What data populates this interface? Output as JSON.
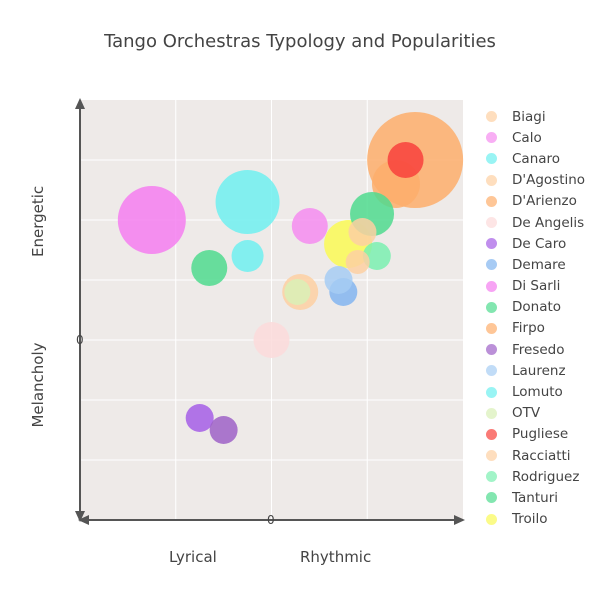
{
  "chart_data": {
    "type": "scatter",
    "title": "Tango Orchestras Typology and Popularities",
    "xlabel_left": "Lyrical",
    "xlabel_right": "Rhythmic",
    "ylabel_top": "Energetic",
    "ylabel_bottom": "Melancholy",
    "x_origin_label": "0",
    "y_origin_label": "0",
    "xlim": [
      -2,
      2
    ],
    "ylim": [
      -3,
      4
    ],
    "legend_position": "right",
    "series": [
      {
        "name": "Biagi",
        "color": "#fdd0a2",
        "x": 0.95,
        "y": 1.8,
        "size": 14
      },
      {
        "name": "Calo",
        "color": "#f58cf0",
        "x": 0.4,
        "y": 1.9,
        "size": 18
      },
      {
        "name": "Canaro",
        "color": "#6ef0f0",
        "x": -0.25,
        "y": 2.3,
        "size": 32
      },
      {
        "name": "D'Agostino",
        "color": "#fdd0a2",
        "x": 0.3,
        "y": 0.8,
        "size": 18
      },
      {
        "name": "D'Arienzo",
        "color": "#fdae6b",
        "x": 1.3,
        "y": 2.6,
        "size": 24
      },
      {
        "name": "De Angelis",
        "color": "#fcdada",
        "x": 0.0,
        "y": 0.0,
        "size": 18
      },
      {
        "name": "De Caro",
        "color": "#a55ee6",
        "x": -0.75,
        "y": -1.3,
        "size": 14
      },
      {
        "name": "Demare",
        "color": "#82b5f0",
        "x": 0.75,
        "y": 0.8,
        "size": 14
      },
      {
        "name": "Di Sarli",
        "color": "#f47ef0",
        "x": -1.25,
        "y": 2.0,
        "size": 34
      },
      {
        "name": "Donato",
        "color": "#4fdb8e",
        "x": -0.65,
        "y": 1.2,
        "size": 18
      },
      {
        "name": "Firpo",
        "color": "#fdae6b",
        "x": 1.5,
        "y": 3.0,
        "size": 48
      },
      {
        "name": "Fresedo",
        "color": "#9e61c7",
        "x": -0.5,
        "y": -1.5,
        "size": 14
      },
      {
        "name": "Laurenz",
        "color": "#a6cdf3",
        "x": 0.7,
        "y": 1.0,
        "size": 14
      },
      {
        "name": "Lomuto",
        "color": "#6ef0f0",
        "x": -0.25,
        "y": 1.4,
        "size": 16
      },
      {
        "name": "OTV",
        "color": "#d9f0b6",
        "x": 0.27,
        "y": 0.8,
        "size": 13
      },
      {
        "name": "Pugliese",
        "color": "#f8413c",
        "x": 1.4,
        "y": 3.0,
        "size": 18
      },
      {
        "name": "Racciatti",
        "color": "#fdd0a2",
        "x": 0.9,
        "y": 1.3,
        "size": 12
      },
      {
        "name": "Rodriguez",
        "color": "#7af0b0",
        "x": 1.1,
        "y": 1.4,
        "size": 14
      },
      {
        "name": "Tanturi",
        "color": "#4fdb8e",
        "x": 1.05,
        "y": 2.1,
        "size": 22
      },
      {
        "name": "Troilo",
        "color": "#fafa55",
        "x": 0.8,
        "y": 1.6,
        "size": 24
      }
    ]
  }
}
